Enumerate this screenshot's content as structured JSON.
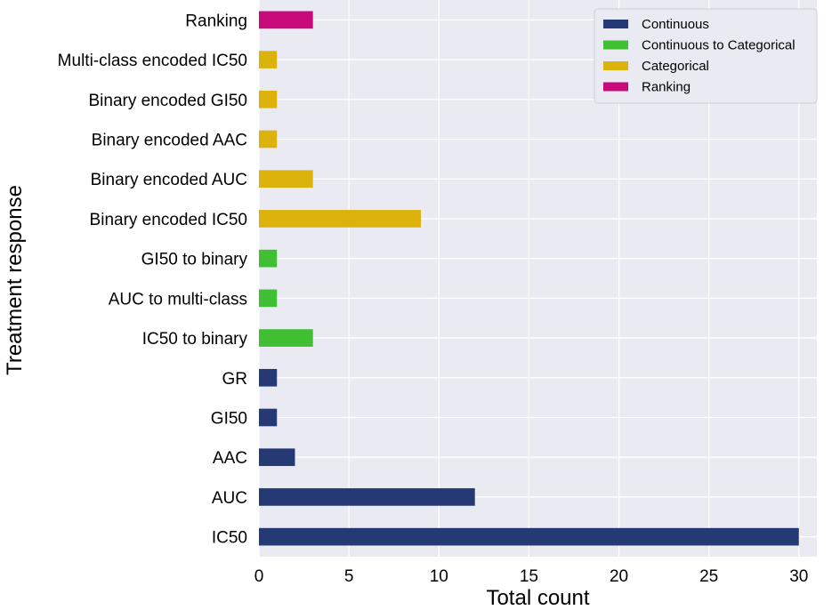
{
  "chart_data": {
    "type": "bar",
    "orientation": "horizontal",
    "title": "",
    "xlabel": "Total count",
    "ylabel": "Treatment response",
    "xlim": [
      0,
      31
    ],
    "xticks": [
      0,
      5,
      10,
      15,
      20,
      25,
      30
    ],
    "grid": true,
    "legend_position": "top-right",
    "categories": [
      "IC50",
      "AUC",
      "AAC",
      "GI50",
      "GR",
      "IC50 to binary",
      "AUC to multi-class",
      "GI50 to binary",
      "Binary encoded IC50",
      "Binary encoded AUC",
      "Binary encoded AAC",
      "Binary encoded GI50",
      "Multi-class encoded IC50",
      "Ranking"
    ],
    "values": [
      30,
      12,
      2,
      1,
      1,
      3,
      1,
      1,
      9,
      3,
      1,
      1,
      1,
      3
    ],
    "groups": [
      "Continuous",
      "Continuous",
      "Continuous",
      "Continuous",
      "Continuous",
      "Continuous to Categorical",
      "Continuous to Categorical",
      "Continuous to Categorical",
      "Categorical",
      "Categorical",
      "Categorical",
      "Categorical",
      "Categorical",
      "Ranking"
    ],
    "legend": [
      {
        "name": "Continuous",
        "color": "#253a74"
      },
      {
        "name": "Continuous to Categorical",
        "color": "#40bf34"
      },
      {
        "name": "Categorical",
        "color": "#dbb30c"
      },
      {
        "name": "Ranking",
        "color": "#c80b7b"
      }
    ]
  },
  "colors": {
    "plot_background": "#eaeaf2",
    "grid": "#ffffff",
    "Continuous": "#253a74",
    "Continuous to Categorical": "#40bf34",
    "Categorical": "#dbb30c",
    "Ranking": "#c80b7b"
  }
}
